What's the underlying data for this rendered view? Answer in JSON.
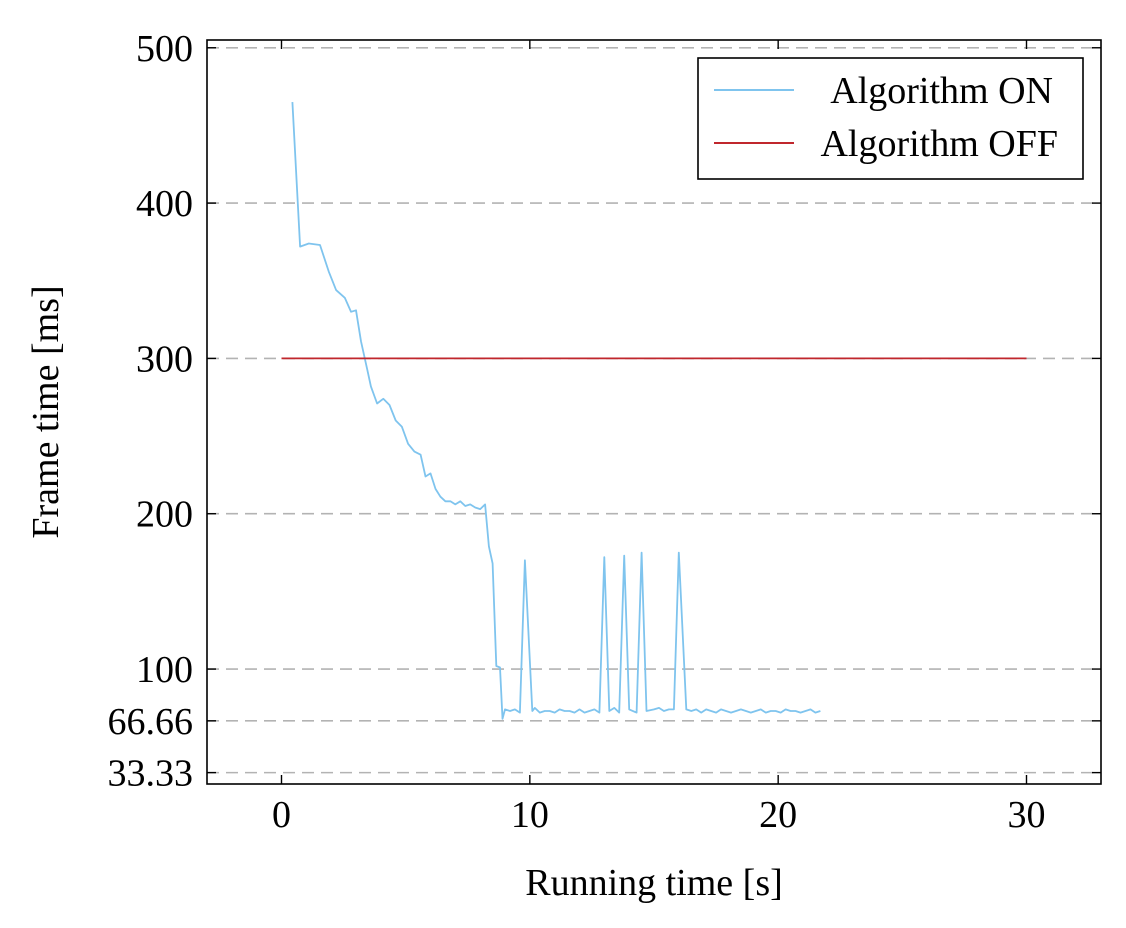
{
  "chart_data": {
    "type": "line",
    "xlabel": "Running time [s]",
    "ylabel": "Frame time [ms]",
    "xlim": [
      -3,
      33
    ],
    "ylim": [
      26,
      505
    ],
    "xticks": [
      0,
      10,
      20,
      30
    ],
    "xtick_labels": [
      "0",
      "10",
      "20",
      "30"
    ],
    "yticks": [
      33.33,
      66.66,
      100,
      200,
      300,
      400,
      500
    ],
    "ytick_labels": [
      "33.33",
      "66.66",
      "100",
      "200",
      "300",
      "400",
      "500"
    ],
    "grid": "horizontal dashed at y ticks",
    "legend": {
      "placement": "top-right",
      "entries": [
        "Algorithm ON",
        "Algorithm OFF"
      ]
    },
    "series": [
      {
        "name": "Algorithm ON",
        "color": "#7fc4ee",
        "x": [
          0.44,
          0.75,
          1.1,
          1.55,
          1.9,
          2.2,
          2.55,
          2.8,
          3.0,
          3.2,
          3.45,
          3.6,
          3.85,
          4.1,
          4.35,
          4.6,
          4.85,
          5.1,
          5.35,
          5.6,
          5.8,
          6.0,
          6.2,
          6.4,
          6.6,
          6.8,
          7.0,
          7.2,
          7.4,
          7.6,
          7.8,
          8.0,
          8.2,
          8.35,
          8.5,
          8.65,
          8.8,
          8.9,
          9.0,
          9.2,
          9.4,
          9.6,
          9.8,
          10.1,
          10.2,
          10.4,
          10.6,
          10.8,
          11.0,
          11.2,
          11.4,
          11.6,
          11.8,
          12.0,
          12.2,
          12.4,
          12.6,
          12.8,
          13.0,
          13.2,
          13.4,
          13.6,
          13.8,
          14.0,
          14.3,
          14.5,
          14.7,
          15.0,
          15.2,
          15.4,
          15.6,
          15.8,
          16.0,
          16.3,
          16.5,
          16.7,
          16.9,
          17.1,
          17.3,
          17.5,
          17.7,
          17.9,
          18.1,
          18.3,
          18.5,
          18.7,
          18.9,
          19.1,
          19.3,
          19.5,
          19.7,
          19.9,
          20.1,
          20.3,
          20.5,
          20.7,
          20.9,
          21.1,
          21.3,
          21.5,
          21.7
        ],
        "y": [
          465,
          372,
          374,
          373,
          356,
          344,
          339,
          330,
          331,
          311,
          293,
          282,
          271,
          274,
          270,
          260,
          256,
          245,
          240,
          238,
          224,
          226,
          216,
          211,
          208,
          208,
          206,
          208,
          205,
          206,
          204,
          203,
          206,
          179,
          168,
          102,
          101,
          68,
          74,
          73,
          74,
          72,
          170,
          73,
          75,
          72,
          73,
          73,
          72,
          74,
          73,
          73,
          72,
          74,
          72,
          73,
          74,
          72,
          172,
          73,
          75,
          72,
          173,
          74,
          72,
          175,
          73,
          74,
          75,
          73,
          74,
          74,
          175,
          74,
          73,
          74,
          72,
          74,
          73,
          72,
          74,
          73,
          72,
          73,
          74,
          73,
          72,
          73,
          74,
          72,
          73,
          73,
          72,
          74,
          73,
          73,
          72,
          73,
          74,
          72,
          73
        ]
      },
      {
        "name": "Algorithm OFF",
        "color": "#c0272d",
        "x": [
          0,
          30
        ],
        "y": [
          300,
          300
        ]
      }
    ]
  }
}
